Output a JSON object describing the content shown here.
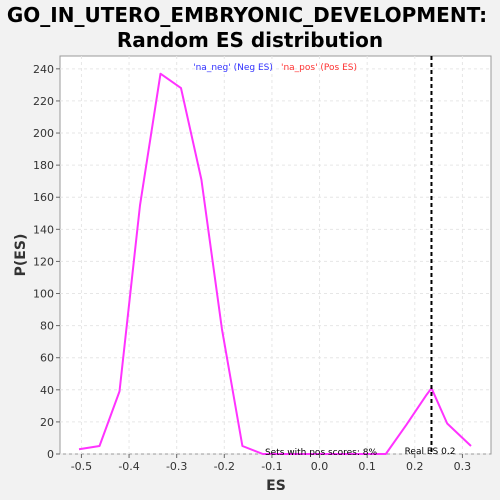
{
  "chart_data": {
    "type": "line",
    "title_line1": "GO_IN_UTERO_EMBRYONIC_DEVELOPMENT:",
    "title_line2": "Random ES distribution",
    "xlabel": "ES",
    "ylabel": "P(ES)",
    "xlim": [
      -0.545,
      0.36
    ],
    "ylim": [
      0,
      248
    ],
    "x_ticks": [
      -0.5,
      -0.4,
      -0.3,
      -0.2,
      -0.1,
      0.0,
      0.1,
      0.2,
      0.3
    ],
    "x_tick_labels": [
      "-0.5",
      "-0.4",
      "-0.3",
      "-0.2",
      "-0.1",
      "0.0",
      "0.1",
      "0.2",
      "0.3"
    ],
    "y_ticks": [
      0,
      20,
      40,
      60,
      80,
      100,
      120,
      140,
      160,
      180,
      200,
      220,
      240
    ],
    "y_tick_labels": [
      "0",
      "20",
      "40",
      "60",
      "80",
      "100",
      "120",
      "140",
      "160",
      "180",
      "200",
      "220",
      "240"
    ],
    "grid": true,
    "series": [
      {
        "color": "#ff33ff",
        "x": [
          -0.505,
          -0.462,
          -0.42,
          -0.377,
          -0.334,
          -0.291,
          -0.248,
          -0.205,
          -0.162,
          -0.119,
          -0.076,
          -0.033,
          0.01,
          0.053,
          0.096,
          0.139,
          0.182,
          0.225,
          0.235,
          0.268,
          0.318
        ],
        "y": [
          3,
          5,
          39,
          155,
          237,
          228,
          171,
          78,
          5,
          0,
          0,
          0,
          0,
          0,
          0,
          0,
          18,
          37,
          41,
          19,
          5
        ]
      }
    ],
    "legend": {
      "placement": "top-center",
      "items": [
        {
          "text": "'na_neg' (Neg ES)",
          "color": "#3333ff"
        },
        {
          "text": "'na_pos' (Pos ES)",
          "color": "#ff3333"
        }
      ]
    },
    "real_es": {
      "value": 0.235,
      "label": "Real ES 0.2",
      "color": "#000000"
    },
    "annotation": "Sets with pos scores: 8%",
    "colors": {
      "background": "#f2f2f2",
      "plot_background": "#ffffff",
      "grid": "#e6e6e6"
    }
  }
}
